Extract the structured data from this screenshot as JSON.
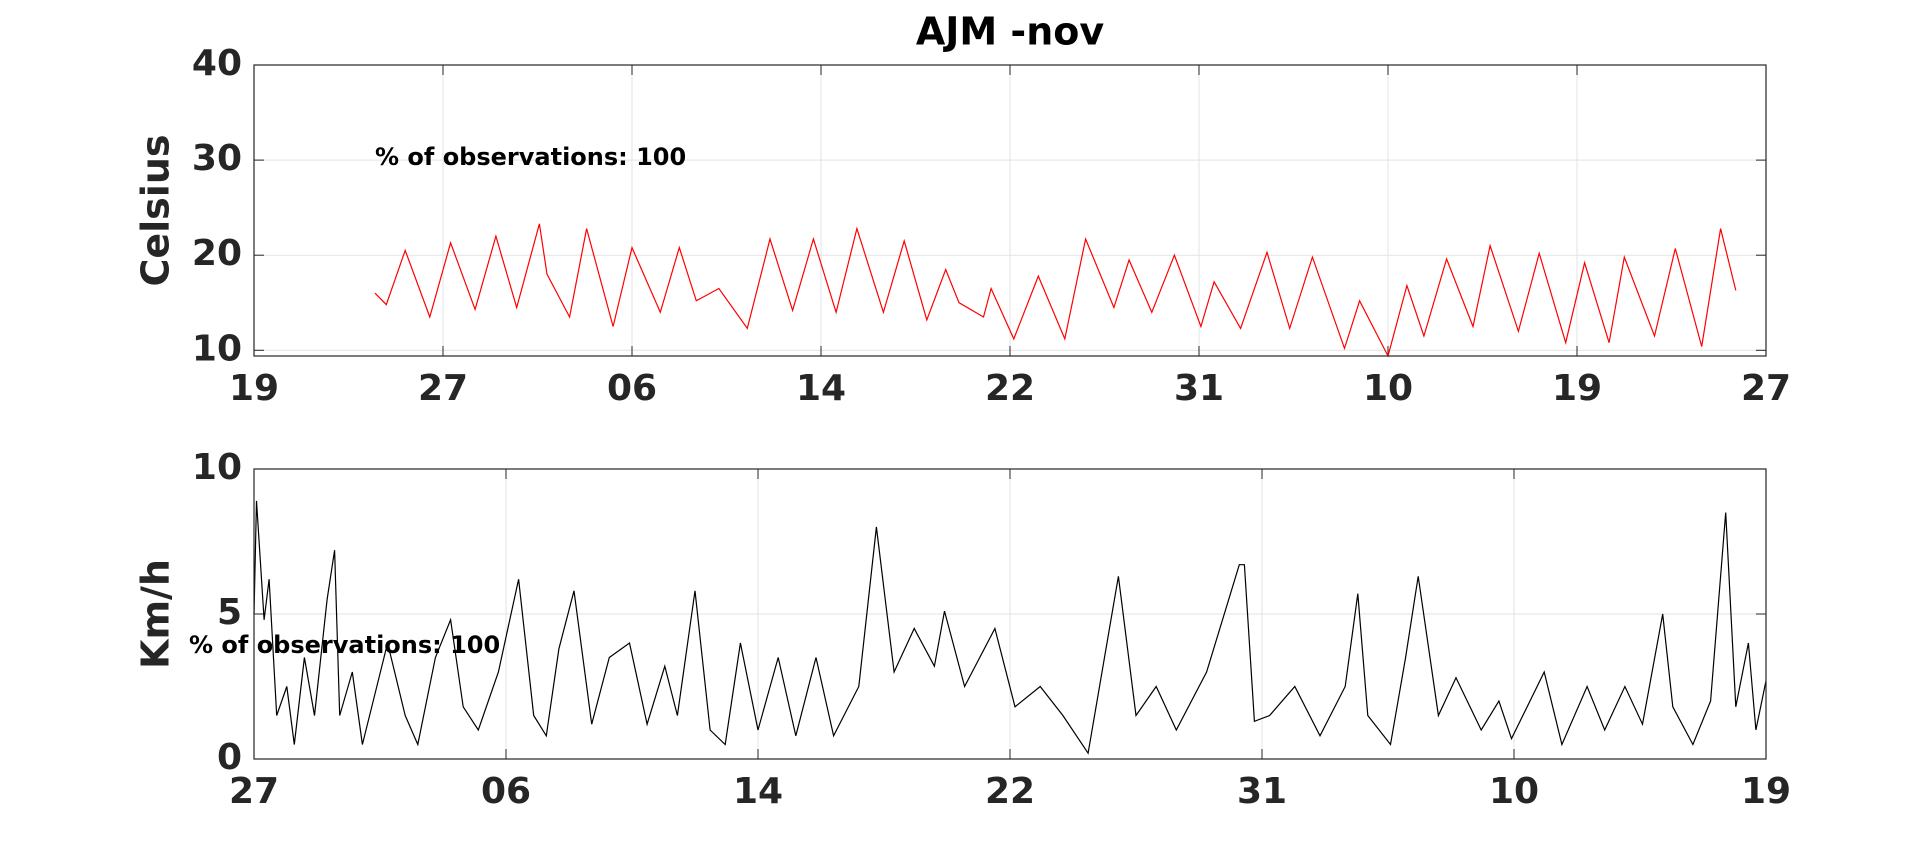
{
  "chart_data": [
    {
      "type": "line",
      "title": "AJM -nov",
      "y_label": "Celsius",
      "annotation": "% of observations: 100",
      "xlim": [
        0,
        8
      ],
      "xticks": [
        {
          "value": 0,
          "label": "19"
        },
        {
          "value": 1,
          "label": "27"
        },
        {
          "value": 2,
          "label": "06"
        },
        {
          "value": 3,
          "label": "14"
        },
        {
          "value": 4,
          "label": "22"
        },
        {
          "value": 5,
          "label": "31"
        },
        {
          "value": 6,
          "label": "10"
        },
        {
          "value": 7,
          "label": "19"
        },
        {
          "value": 8,
          "label": "27"
        }
      ],
      "ylim": [
        9.4,
        40
      ],
      "yticks": [
        10,
        20,
        30,
        40
      ],
      "grid": true,
      "series": [
        {
          "color": "#ff0000",
          "x": [
            0.64,
            0.7,
            0.8,
            0.93,
            1.04,
            1.17,
            1.28,
            1.39,
            1.51,
            1.55,
            1.67,
            1.76,
            1.9,
            2.0,
            2.15,
            2.25,
            2.34,
            2.46,
            2.61,
            2.73,
            2.85,
            2.96,
            3.08,
            3.19,
            3.33,
            3.44,
            3.56,
            3.66,
            3.73,
            3.86,
            3.9,
            4.02,
            4.15,
            4.29,
            4.4,
            4.55,
            4.63,
            4.75,
            4.87,
            5.01,
            5.08,
            5.22,
            5.36,
            5.48,
            5.6,
            5.77,
            5.85,
            6.0,
            6.1,
            6.19,
            6.31,
            6.45,
            6.54,
            6.69,
            6.8,
            6.94,
            7.04,
            7.17,
            7.25,
            7.41,
            7.52,
            7.66,
            7.76,
            7.84
          ],
          "values": [
            16,
            14.8,
            20.5,
            13.5,
            21.3,
            14.3,
            22,
            14.5,
            23.3,
            18,
            13.5,
            22.8,
            12.5,
            20.8,
            14,
            20.8,
            15.2,
            16.5,
            12.3,
            21.7,
            14.2,
            21.7,
            14,
            22.8,
            14,
            21.5,
            13.2,
            18.5,
            15,
            13.5,
            16.5,
            11.2,
            17.8,
            11.2,
            21.7,
            14.5,
            19.5,
            14,
            20,
            12.5,
            17.2,
            12.3,
            20.3,
            12.3,
            19.8,
            10.2,
            15.2,
            9.4,
            16.8,
            11.5,
            19.6,
            12.5,
            21,
            12,
            20.2,
            10.8,
            19.2,
            10.8,
            19.8,
            11.5,
            20.7,
            10.4,
            22.8,
            16.3
          ]
        }
      ]
    },
    {
      "type": "line",
      "y_label": "Km/h",
      "annotation": "% of observations: 100",
      "xlim": [
        0,
        6
      ],
      "xticks": [
        {
          "value": 0,
          "label": "27"
        },
        {
          "value": 1,
          "label": "06"
        },
        {
          "value": 2,
          "label": "14"
        },
        {
          "value": 3,
          "label": "22"
        },
        {
          "value": 4,
          "label": "31"
        },
        {
          "value": 5,
          "label": "10"
        },
        {
          "value": 6,
          "label": "19"
        }
      ],
      "ylim": [
        0,
        10
      ],
      "yticks": [
        0,
        5,
        10
      ],
      "grid": true,
      "series": [
        {
          "color": "#000000",
          "x": [
            0,
            0.01,
            0.04,
            0.06,
            0.09,
            0.13,
            0.16,
            0.2,
            0.24,
            0.29,
            0.32,
            0.34,
            0.39,
            0.43,
            0.53,
            0.6,
            0.65,
            0.72,
            0.78,
            0.83,
            0.89,
            0.97,
            1.05,
            1.11,
            1.16,
            1.21,
            1.27,
            1.34,
            1.41,
            1.49,
            1.56,
            1.63,
            1.68,
            1.75,
            1.81,
            1.87,
            1.93,
            2.0,
            2.08,
            2.15,
            2.23,
            2.3,
            2.4,
            2.47,
            2.54,
            2.62,
            2.7,
            2.74,
            2.82,
            2.94,
            3.02,
            3.12,
            3.21,
            3.31,
            3.43,
            3.5,
            3.58,
            3.66,
            3.78,
            3.91,
            3.93,
            3.97,
            4.03,
            4.13,
            4.23,
            4.33,
            4.38,
            4.42,
            4.51,
            4.57,
            4.62,
            4.7,
            4.77,
            4.87,
            4.94,
            4.99,
            5.12,
            5.19,
            5.29,
            5.36,
            5.44,
            5.51,
            5.59,
            5.63,
            5.71,
            5.78,
            5.84,
            5.88,
            5.93,
            5.96,
            6.0
          ],
          "values": [
            5,
            8.9,
            4.8,
            6.2,
            1.5,
            2.5,
            0.5,
            3.5,
            1.5,
            5.5,
            7.2,
            1.5,
            3,
            0.5,
            4,
            1.5,
            0.5,
            3.5,
            4.8,
            1.8,
            1,
            3,
            6.2,
            1.5,
            0.8,
            3.8,
            5.8,
            1.2,
            3.5,
            4,
            1.2,
            3.2,
            1.5,
            5.8,
            1,
            0.5,
            4,
            1,
            3.5,
            0.8,
            3.5,
            0.8,
            2.5,
            8,
            3,
            4.5,
            3.2,
            5.1,
            2.5,
            4.5,
            1.8,
            2.5,
            1.5,
            0.2,
            6.3,
            1.5,
            2.5,
            1,
            3,
            6.7,
            6.7,
            1.3,
            1.5,
            2.5,
            0.8,
            2.5,
            5.7,
            1.5,
            0.5,
            3.5,
            6.3,
            1.5,
            2.8,
            1,
            2,
            0.7,
            3,
            0.5,
            2.5,
            1,
            2.5,
            1.2,
            5,
            1.8,
            0.5,
            2,
            8.5,
            1.8,
            4,
            1,
            2.7
          ]
        }
      ]
    }
  ]
}
